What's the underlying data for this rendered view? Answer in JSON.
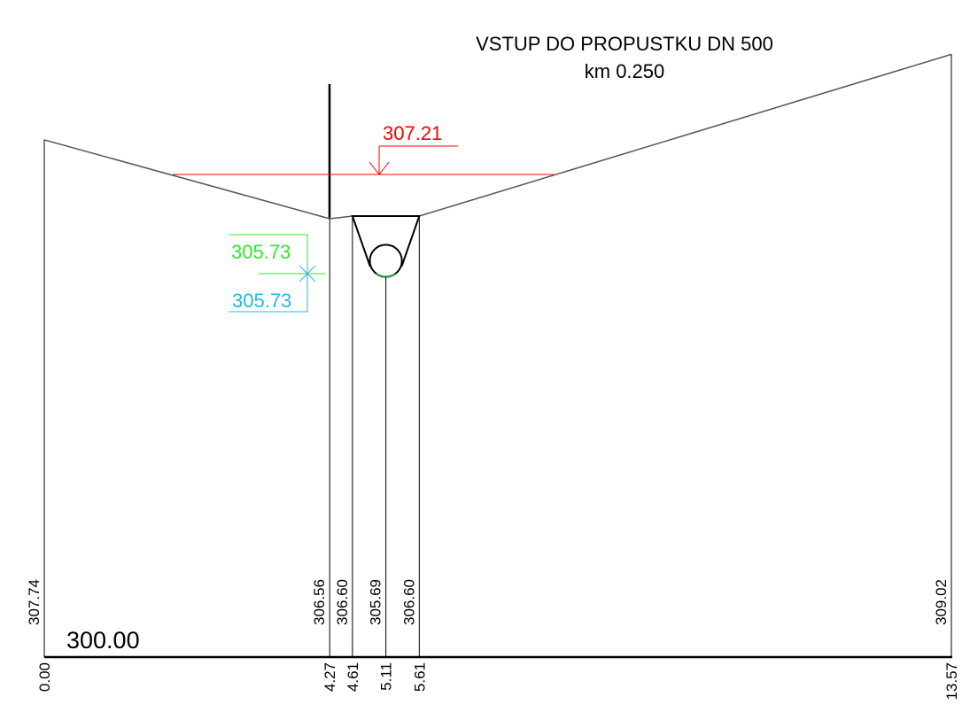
{
  "title": "VSTUP DO PROPUSTKU DN 500",
  "subtitle": "km 0.250",
  "water_level": "307.21",
  "level_upper": "305.73",
  "level_lower": "305.73",
  "datum": "300.00",
  "points": [
    {
      "station": "0.00",
      "elevation": "307.74"
    },
    {
      "station": "4.27",
      "elevation": "306.56"
    },
    {
      "station": "4.61",
      "elevation": "306.60"
    },
    {
      "station": "5.11",
      "elevation": "305.69"
    },
    {
      "station": "5.61",
      "elevation": "306.60"
    },
    {
      "station": "13.57",
      "elevation": "309.02"
    }
  ]
}
